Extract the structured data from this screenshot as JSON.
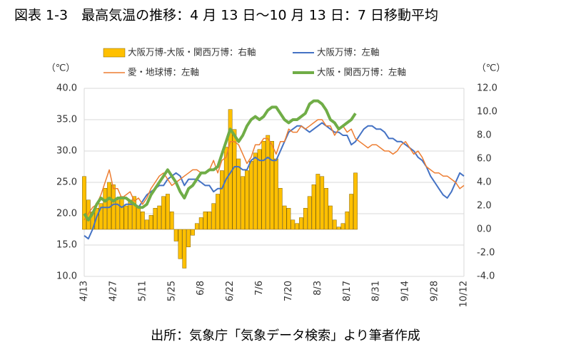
{
  "chart_data": {
    "type": "combo",
    "title": "図表 1-3　最高気温の推移：4 月 13 日～10 月 13 日：7 日移動平均",
    "source": "出所：気象庁「気象データ検索」より筆者作成",
    "y_unit": "（℃）",
    "y2_unit": "（℃）",
    "categories": [
      "4/13",
      null,
      null,
      null,
      null,
      null,
      null,
      "4/27",
      null,
      null,
      null,
      null,
      null,
      null,
      "5/11",
      null,
      null,
      null,
      null,
      null,
      null,
      "5/25",
      null,
      null,
      null,
      null,
      null,
      null,
      "6/8",
      null,
      null,
      null,
      null,
      null,
      null,
      "6/22",
      null,
      null,
      null,
      null,
      null,
      null,
      "7/6",
      null,
      null,
      null,
      null,
      null,
      null,
      "7/20",
      null,
      null,
      null,
      null,
      null,
      null,
      "8/3",
      null,
      null,
      null,
      null,
      null,
      null,
      "8/17",
      null,
      null,
      null,
      null,
      null,
      null,
      "8/31",
      null,
      null,
      null,
      null,
      null,
      null,
      "9/14",
      null,
      null,
      null,
      null,
      null,
      null,
      "9/28",
      null,
      null,
      null,
      null,
      null,
      null,
      "10/12"
    ],
    "ylim": [
      10,
      40
    ],
    "yticks": [
      {
        "value": 10,
        "label": "10.0"
      },
      {
        "value": 15,
        "label": "15.0"
      },
      {
        "value": 20,
        "label": "20.0"
      },
      {
        "value": 25,
        "label": "25.0"
      },
      {
        "value": 30,
        "label": "30.0"
      },
      {
        "value": 35,
        "label": "35.0"
      },
      {
        "value": 40,
        "label": "40.0"
      }
    ],
    "y2lim": [
      -4,
      12
    ],
    "y2ticks": [
      {
        "value": -4,
        "label": "-4.0"
      },
      {
        "value": -2,
        "label": "-2.0"
      },
      {
        "value": 0,
        "label": "0.0"
      },
      {
        "value": 2,
        "label": "2.0"
      },
      {
        "value": 4,
        "label": "4.0"
      },
      {
        "value": 6,
        "label": "6.0"
      },
      {
        "value": 8,
        "label": "8.0"
      },
      {
        "value": 10,
        "label": "10.0"
      },
      {
        "value": 12,
        "label": "12.0"
      }
    ],
    "negative_tick_color": "#e00000",
    "grid": true,
    "series": [
      {
        "name": "大阪万博-大阪・関西万博：右軸",
        "type": "bar",
        "axis": "y2",
        "color": "#ffc000",
        "values": [
          4.5,
          2.5,
          1.5,
          1.8,
          2.2,
          3.5,
          4.0,
          3.8,
          2.5,
          2.8,
          2.0,
          2.5,
          2.8,
          2.0,
          1.5,
          0.8,
          1.2,
          1.8,
          2.0,
          2.8,
          3.0,
          1.5,
          -1.0,
          -2.5,
          -3.3,
          -1.5,
          -0.5,
          0.5,
          1.0,
          1.5,
          1.5,
          2.2,
          3.0,
          5.0,
          7.0,
          10.2,
          8.5,
          6.0,
          4.5,
          5.0,
          5.8,
          6.5,
          6.8,
          7.5,
          8.0,
          7.5,
          6.0,
          3.5,
          2.0,
          1.8,
          0.8,
          0.5,
          1.0,
          1.8,
          2.8,
          3.8,
          4.7,
          4.5,
          3.5,
          2.0,
          0.8,
          0.2,
          0.5,
          1.5,
          3.0,
          4.8,
          null,
          null,
          null,
          null,
          null,
          null,
          null,
          null,
          null,
          null,
          null,
          null,
          null,
          null,
          null,
          null,
          null,
          null,
          null,
          null,
          null,
          null,
          null,
          null,
          null,
          null
        ]
      },
      {
        "name": "大阪万博：左軸",
        "type": "line",
        "color": "#4472c4",
        "width": 2,
        "values": [
          16.5,
          16.0,
          17.5,
          19.5,
          21.0,
          21.0,
          21.0,
          21.5,
          21.5,
          21.0,
          21.5,
          21.5,
          21.5,
          21.0,
          22.0,
          23.0,
          23.5,
          24.0,
          24.5,
          24.5,
          25.5,
          26.0,
          26.5,
          26.0,
          24.5,
          25.5,
          25.5,
          25.5,
          25.0,
          24.5,
          24.5,
          23.5,
          24.0,
          24.0,
          25.5,
          26.5,
          27.5,
          27.5,
          27.0,
          27.0,
          28.5,
          29.0,
          28.5,
          28.5,
          29.0,
          28.5,
          28.5,
          30.0,
          31.5,
          33.0,
          33.5,
          34.0,
          34.0,
          33.5,
          33.0,
          33.5,
          34.0,
          34.5,
          34.0,
          33.5,
          33.0,
          33.0,
          32.5,
          32.5,
          31.0,
          31.5,
          32.5,
          33.5,
          34.0,
          34.0,
          33.5,
          33.5,
          33.0,
          32.0,
          32.0,
          31.5,
          31.5,
          31.0,
          30.5,
          30.0,
          29.0,
          28.5,
          27.5,
          26.0,
          25.0,
          24.0,
          23.0,
          22.5,
          23.5,
          25.0,
          26.5,
          26.0
        ]
      },
      {
        "name": "愛・地球博：左軸",
        "type": "line",
        "color": "#ed7d31",
        "width": 1.5,
        "values": [
          19.0,
          20.0,
          21.0,
          21.5,
          23.0,
          25.0,
          27.0,
          24.0,
          24.0,
          22.5,
          23.0,
          23.5,
          22.0,
          22.5,
          21.5,
          22.5,
          24.0,
          25.0,
          26.0,
          26.5,
          25.5,
          24.5,
          25.0,
          25.5,
          26.0,
          26.5,
          27.0,
          27.0,
          26.5,
          26.5,
          27.0,
          28.5,
          26.5,
          28.5,
          29.0,
          31.5,
          31.5,
          31.0,
          29.5,
          28.0,
          29.0,
          31.0,
          31.0,
          32.0,
          32.0,
          31.0,
          29.5,
          31.5,
          31.5,
          33.5,
          33.0,
          33.0,
          34.0,
          33.5,
          34.0,
          34.5,
          35.0,
          35.0,
          34.0,
          34.0,
          32.5,
          33.5,
          34.0,
          33.0,
          33.5,
          32.0,
          31.5,
          31.0,
          30.5,
          31.0,
          31.0,
          30.5,
          30.0,
          30.0,
          29.5,
          30.0,
          31.0,
          31.5,
          30.5,
          29.5,
          30.0,
          29.0,
          27.5,
          27.0,
          26.5,
          26.5,
          26.0,
          26.0,
          25.5,
          25.0,
          24.0,
          24.5
        ]
      },
      {
        "name": "大阪・関西万博：左軸",
        "type": "line",
        "color": "#70ad47",
        "width": 4,
        "values": [
          20.0,
          19.0,
          20.0,
          21.5,
          22.5,
          22.0,
          22.5,
          22.0,
          22.5,
          22.5,
          22.5,
          22.0,
          21.5,
          21.0,
          21.0,
          21.5,
          23.0,
          24.0,
          25.0,
          26.0,
          27.0,
          26.0,
          25.0,
          23.5,
          22.5,
          24.0,
          24.5,
          25.5,
          26.5,
          26.5,
          27.0,
          27.0,
          27.5,
          29.5,
          31.5,
          33.5,
          32.5,
          31.5,
          32.5,
          34.0,
          35.0,
          35.5,
          35.0,
          35.5,
          36.5,
          37.0,
          37.0,
          36.0,
          35.0,
          34.5,
          35.0,
          35.0,
          35.5,
          36.0,
          37.5,
          38.0,
          38.0,
          37.5,
          36.5,
          35.0,
          34.5,
          33.5,
          34.0,
          34.5,
          35.0,
          36.0,
          null,
          null,
          null,
          null,
          null,
          null,
          null,
          null,
          null,
          null,
          null,
          null,
          null,
          null,
          null,
          null,
          null,
          null,
          null,
          null,
          null,
          null,
          null,
          null,
          null,
          null
        ]
      }
    ]
  }
}
